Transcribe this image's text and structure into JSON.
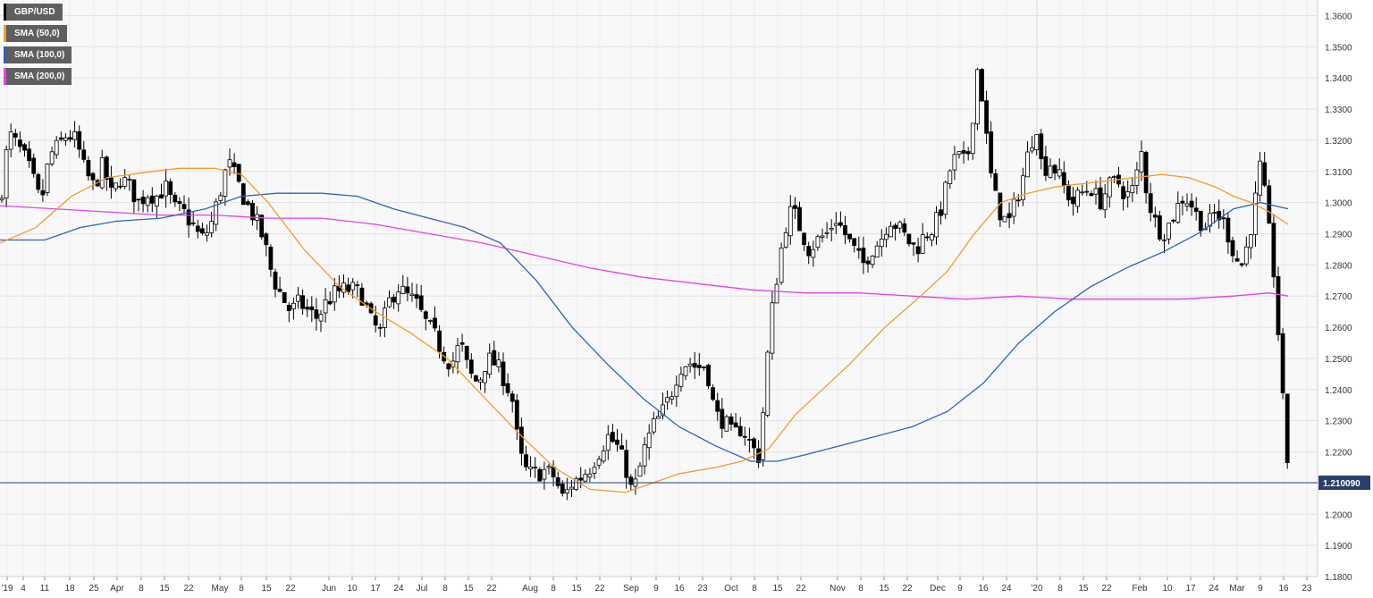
{
  "chart_data": {
    "type": "candlestick",
    "symbol": "GBP/USD",
    "timeframe": "daily",
    "last_price_label": "1.210090",
    "last_price": 1.2101,
    "ylim": [
      1.18,
      1.365
    ],
    "y_ticks": [
      "1.3600",
      "1.3500",
      "1.3400",
      "1.3300",
      "1.3200",
      "1.3100",
      "1.3000",
      "1.2900",
      "1.2800",
      "1.2700",
      "1.2600",
      "1.2500",
      "1.2400",
      "1.2300",
      "1.2200",
      "1.2100",
      "1.2000",
      "1.1900",
      "1.1800"
    ],
    "x_ticks": [
      "'19",
      "4",
      "11",
      "18",
      "25",
      "Apr",
      "8",
      "15",
      "22",
      "May",
      "8",
      "15",
      "22",
      "Jun",
      "10",
      "17",
      "24",
      "Jul",
      "8",
      "15",
      "22",
      "Aug",
      "8",
      "15",
      "22",
      "Sep",
      "9",
      "16",
      "23",
      "Oct",
      "8",
      "15",
      "22",
      "Nov",
      "8",
      "15",
      "22",
      "Dec",
      "9",
      "16",
      "24",
      "'20",
      "8",
      "15",
      "22",
      "Feb",
      "10",
      "17",
      "24",
      "Mar",
      "9",
      "16",
      "23"
    ],
    "grid": true,
    "legend": [
      {
        "label": "GBP/USD",
        "color": "#000000"
      },
      {
        "label": "SMA (50,0)",
        "color": "#f39c2b"
      },
      {
        "label": "SMA (100,0)",
        "color": "#2e63b8"
      },
      {
        "label": "SMA (200,0)",
        "color": "#e83fe8"
      }
    ],
    "colors": {
      "up_candle": "#ffffff",
      "down_candle": "#000000",
      "sma50": "#f39c2b",
      "sma100": "#2e63b8",
      "sma200": "#e83fe8",
      "price_line": "#2b3f6b"
    },
    "close_path": [
      [
        0,
        1.3
      ],
      [
        10,
        1.322
      ],
      [
        20,
        1.318
      ],
      [
        30,
        1.313
      ],
      [
        40,
        1.305
      ],
      [
        45,
        1.3
      ],
      [
        50,
        1.305
      ],
      [
        55,
        1.315
      ],
      [
        65,
        1.318
      ],
      [
        75,
        1.322
      ],
      [
        85,
        1.32
      ],
      [
        95,
        1.31
      ],
      [
        105,
        1.305
      ],
      [
        115,
        1.312
      ],
      [
        125,
        1.302
      ],
      [
        135,
        1.308
      ],
      [
        145,
        1.305
      ],
      [
        155,
        1.3
      ],
      [
        165,
        1.303
      ],
      [
        175,
        1.302
      ],
      [
        185,
        1.305
      ],
      [
        195,
        1.298
      ],
      [
        205,
        1.297
      ],
      [
        215,
        1.293
      ],
      [
        225,
        1.288
      ],
      [
        235,
        1.292
      ],
      [
        245,
        1.302
      ],
      [
        255,
        1.313
      ],
      [
        265,
        1.307
      ],
      [
        275,
        1.3
      ],
      [
        285,
        1.295
      ],
      [
        295,
        1.288
      ],
      [
        305,
        1.276
      ],
      [
        315,
        1.27
      ],
      [
        325,
        1.265
      ],
      [
        335,
        1.268
      ],
      [
        345,
        1.265
      ],
      [
        355,
        1.263
      ],
      [
        365,
        1.268
      ],
      [
        375,
        1.271
      ],
      [
        385,
        1.272
      ],
      [
        395,
        1.272
      ],
      [
        405,
        1.27
      ],
      [
        415,
        1.262
      ],
      [
        425,
        1.258
      ],
      [
        435,
        1.268
      ],
      [
        445,
        1.273
      ],
      [
        455,
        1.27
      ],
      [
        465,
        1.268
      ],
      [
        475,
        1.262
      ],
      [
        485,
        1.258
      ],
      [
        495,
        1.252
      ],
      [
        505,
        1.248
      ],
      [
        515,
        1.255
      ],
      [
        525,
        1.245
      ],
      [
        535,
        1.242
      ],
      [
        545,
        1.25
      ],
      [
        555,
        1.248
      ],
      [
        565,
        1.243
      ],
      [
        575,
        1.235
      ],
      [
        580,
        1.22
      ],
      [
        590,
        1.213
      ],
      [
        600,
        1.213
      ],
      [
        610,
        1.214
      ],
      [
        620,
        1.212
      ],
      [
        630,
        1.205
      ],
      [
        640,
        1.21
      ],
      [
        650,
        1.212
      ],
      [
        660,
        1.215
      ],
      [
        670,
        1.22
      ],
      [
        680,
        1.225
      ],
      [
        690,
        1.222
      ],
      [
        700,
        1.215
      ],
      [
        706,
        1.208
      ],
      [
        712,
        1.21
      ],
      [
        720,
        1.22
      ],
      [
        730,
        1.228
      ],
      [
        740,
        1.232
      ],
      [
        750,
        1.238
      ],
      [
        760,
        1.247
      ],
      [
        770,
        1.249
      ],
      [
        780,
        1.247
      ],
      [
        790,
        1.248
      ],
      [
        800,
        1.232
      ],
      [
        810,
        1.23
      ],
      [
        820,
        1.225
      ],
      [
        830,
        1.228
      ],
      [
        840,
        1.222
      ],
      [
        850,
        1.218
      ],
      [
        855,
        1.238
      ],
      [
        862,
        1.262
      ],
      [
        870,
        1.278
      ],
      [
        878,
        1.292
      ],
      [
        886,
        1.298
      ],
      [
        895,
        1.292
      ],
      [
        905,
        1.285
      ],
      [
        915,
        1.288
      ],
      [
        925,
        1.29
      ],
      [
        935,
        1.295
      ],
      [
        945,
        1.29
      ],
      [
        955,
        1.285
      ],
      [
        965,
        1.28
      ],
      [
        975,
        1.285
      ],
      [
        985,
        1.288
      ],
      [
        995,
        1.295
      ],
      [
        1005,
        1.292
      ],
      [
        1015,
        1.288
      ],
      [
        1025,
        1.285
      ],
      [
        1035,
        1.29
      ],
      [
        1045,
        1.292
      ],
      [
        1055,
        1.3
      ],
      [
        1062,
        1.31
      ],
      [
        1070,
        1.315
      ],
      [
        1078,
        1.313
      ],
      [
        1086,
        1.318
      ],
      [
        1092,
        1.345
      ],
      [
        1100,
        1.332
      ],
      [
        1106,
        1.313
      ],
      [
        1112,
        1.303
      ],
      [
        1120,
        1.296
      ],
      [
        1128,
        1.293
      ],
      [
        1136,
        1.3
      ],
      [
        1144,
        1.308
      ],
      [
        1152,
        1.318
      ],
      [
        1160,
        1.325
      ],
      [
        1166,
        1.31
      ],
      [
        1174,
        1.313
      ],
      [
        1182,
        1.31
      ],
      [
        1190,
        1.305
      ],
      [
        1200,
        1.3
      ],
      [
        1210,
        1.303
      ],
      [
        1220,
        1.305
      ],
      [
        1230,
        1.3
      ],
      [
        1240,
        1.305
      ],
      [
        1250,
        1.307
      ],
      [
        1260,
        1.302
      ],
      [
        1270,
        1.305
      ],
      [
        1276,
        1.318
      ],
      [
        1282,
        1.305
      ],
      [
        1290,
        1.295
      ],
      [
        1300,
        1.29
      ],
      [
        1308,
        1.293
      ],
      [
        1316,
        1.298
      ],
      [
        1324,
        1.302
      ],
      [
        1332,
        1.3
      ],
      [
        1340,
        1.295
      ],
      [
        1350,
        1.292
      ],
      [
        1360,
        1.297
      ],
      [
        1370,
        1.293
      ],
      [
        1376,
        1.288
      ],
      [
        1382,
        1.282
      ],
      [
        1390,
        1.28
      ],
      [
        1398,
        1.29
      ],
      [
        1404,
        1.3
      ],
      [
        1410,
        1.312
      ],
      [
        1416,
        1.3
      ],
      [
        1420,
        1.29
      ],
      [
        1426,
        1.275
      ],
      [
        1432,
        1.25
      ],
      [
        1436,
        1.232
      ],
      [
        1440,
        1.218
      ],
      [
        1443,
        1.21
      ]
    ],
    "sma50_path": [
      [
        0,
        1.287
      ],
      [
        40,
        1.292
      ],
      [
        80,
        1.302
      ],
      [
        120,
        1.308
      ],
      [
        170,
        1.31
      ],
      [
        200,
        1.311
      ],
      [
        240,
        1.311
      ],
      [
        270,
        1.309
      ],
      [
        300,
        1.3
      ],
      [
        340,
        1.285
      ],
      [
        380,
        1.273
      ],
      [
        420,
        1.265
      ],
      [
        460,
        1.258
      ],
      [
        500,
        1.25
      ],
      [
        540,
        1.238
      ],
      [
        580,
        1.226
      ],
      [
        620,
        1.215
      ],
      [
        660,
        1.208
      ],
      [
        700,
        1.207
      ],
      [
        730,
        1.21
      ],
      [
        760,
        1.213
      ],
      [
        800,
        1.215
      ],
      [
        830,
        1.217
      ],
      [
        860,
        1.221
      ],
      [
        890,
        1.232
      ],
      [
        920,
        1.24
      ],
      [
        950,
        1.248
      ],
      [
        990,
        1.26
      ],
      [
        1030,
        1.27
      ],
      [
        1060,
        1.278
      ],
      [
        1090,
        1.29
      ],
      [
        1120,
        1.3
      ],
      [
        1150,
        1.303
      ],
      [
        1180,
        1.305
      ],
      [
        1210,
        1.306
      ],
      [
        1240,
        1.307
      ],
      [
        1270,
        1.308
      ],
      [
        1300,
        1.309
      ],
      [
        1330,
        1.308
      ],
      [
        1360,
        1.305
      ],
      [
        1380,
        1.302
      ],
      [
        1400,
        1.3
      ],
      [
        1420,
        1.297
      ],
      [
        1441,
        1.293
      ]
    ],
    "sma100_path": [
      [
        0,
        1.288
      ],
      [
        50,
        1.288
      ],
      [
        90,
        1.292
      ],
      [
        130,
        1.294
      ],
      [
        180,
        1.295
      ],
      [
        230,
        1.298
      ],
      [
        270,
        1.302
      ],
      [
        310,
        1.303
      ],
      [
        360,
        1.303
      ],
      [
        400,
        1.302
      ],
      [
        440,
        1.298
      ],
      [
        480,
        1.295
      ],
      [
        520,
        1.292
      ],
      [
        560,
        1.287
      ],
      [
        600,
        1.275
      ],
      [
        640,
        1.26
      ],
      [
        680,
        1.248
      ],
      [
        720,
        1.237
      ],
      [
        760,
        1.228
      ],
      [
        800,
        1.222
      ],
      [
        840,
        1.217
      ],
      [
        870,
        1.217
      ],
      [
        900,
        1.219
      ],
      [
        940,
        1.222
      ],
      [
        980,
        1.225
      ],
      [
        1020,
        1.228
      ],
      [
        1060,
        1.233
      ],
      [
        1100,
        1.242
      ],
      [
        1140,
        1.255
      ],
      [
        1180,
        1.265
      ],
      [
        1220,
        1.273
      ],
      [
        1260,
        1.279
      ],
      [
        1300,
        1.284
      ],
      [
        1340,
        1.29
      ],
      [
        1380,
        1.298
      ],
      [
        1410,
        1.3
      ],
      [
        1441,
        1.298
      ]
    ],
    "sma200_path": [
      [
        0,
        1.299
      ],
      [
        60,
        1.298
      ],
      [
        120,
        1.297
      ],
      [
        180,
        1.296
      ],
      [
        240,
        1.296
      ],
      [
        300,
        1.295
      ],
      [
        360,
        1.295
      ],
      [
        420,
        1.293
      ],
      [
        480,
        1.29
      ],
      [
        540,
        1.287
      ],
      [
        600,
        1.283
      ],
      [
        660,
        1.279
      ],
      [
        720,
        1.276
      ],
      [
        780,
        1.274
      ],
      [
        840,
        1.272
      ],
      [
        900,
        1.271
      ],
      [
        960,
        1.271
      ],
      [
        1020,
        1.27
      ],
      [
        1080,
        1.269
      ],
      [
        1140,
        1.27
      ],
      [
        1200,
        1.269
      ],
      [
        1260,
        1.269
      ],
      [
        1320,
        1.269
      ],
      [
        1380,
        1.27
      ],
      [
        1420,
        1.271
      ],
      [
        1441,
        1.27
      ]
    ]
  }
}
